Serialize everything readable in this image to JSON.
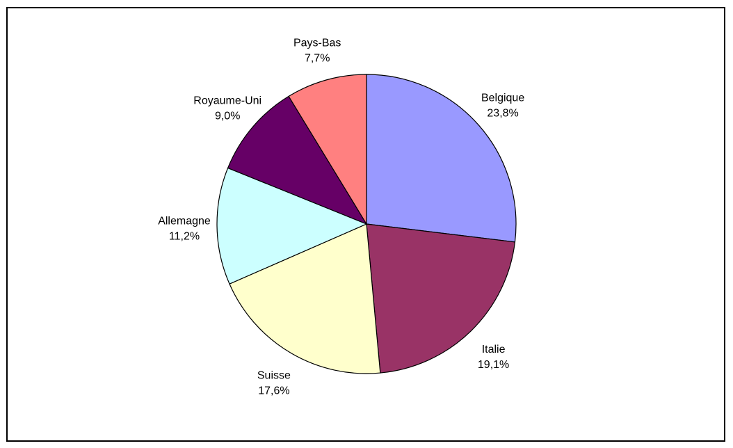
{
  "chart_data": {
    "type": "pie",
    "title": "",
    "slices": [
      {
        "label": "Belgique",
        "value": 23.8,
        "value_label": "23,8%",
        "color": "#9999FF"
      },
      {
        "label": "Italie",
        "value": 19.1,
        "value_label": "19,1%",
        "color": "#993366"
      },
      {
        "label": "Suisse",
        "value": 17.6,
        "value_label": "17,6%",
        "color": "#FFFFCC"
      },
      {
        "label": "Allemagne",
        "value": 11.2,
        "value_label": "11,2%",
        "color": "#CCFFFF"
      },
      {
        "label": "Royaume-Uni",
        "value": 9.0,
        "value_label": "9,0%",
        "color": "#660066"
      },
      {
        "label": "Pays-Bas",
        "value": 7.7,
        "value_label": "7,7%",
        "color": "#FF8080"
      }
    ],
    "start_position": "top",
    "direction": "clockwise",
    "legend": "none"
  }
}
